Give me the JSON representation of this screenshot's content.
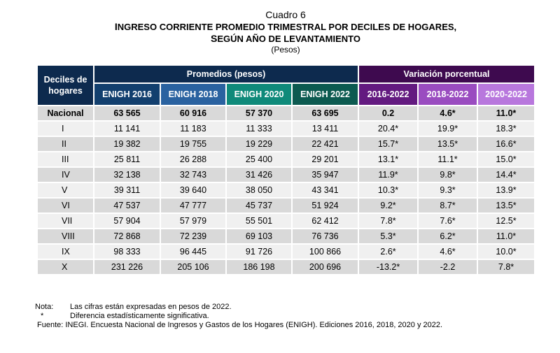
{
  "header": {
    "cuadro": "Cuadro 6",
    "title_line1": "Ingreso corriente promedio trimestral por deciles de hogares,",
    "title_line1_first": "I",
    "title_line1_rest": "NGRESO CORRIENTE PROMEDIO TRIMESTRAL POR DECILES DE HOGARES,",
    "title_line2_first": "S",
    "title_line2_rest": "EGÚN AÑO DE  LEVANTAMIENTO",
    "units": "(Pesos)"
  },
  "table": {
    "row_header": "Deciles de hogares",
    "group_promedios": "Promedios (pesos)",
    "group_variacion": "Variación porcentual",
    "columns": [
      "ENIGH 2016",
      "ENIGH 2018",
      "ENIGH 2020",
      "ENIGH 2022",
      "2016-2022",
      "2018-2022",
      "2020-2022"
    ],
    "column_colors": [
      "#123f6e",
      "#2a62a0",
      "#0f8a7a",
      "#0c5a50",
      "#631a80",
      "#9a4cc0",
      "#b877dd"
    ],
    "rows": [
      {
        "label": "Nacional",
        "values": [
          "63 565",
          "60 916",
          "57 370",
          "63 695",
          "0.2",
          "4.6*",
          "11.0*"
        ]
      },
      {
        "label": "I",
        "values": [
          "11 141",
          "11 183",
          "11 333",
          "13 411",
          "20.4*",
          "19.9*",
          "18.3*"
        ]
      },
      {
        "label": "II",
        "values": [
          "19 382",
          "19 755",
          "19 229",
          "22 421",
          "15.7*",
          "13.5*",
          "16.6*"
        ]
      },
      {
        "label": "III",
        "values": [
          "25 811",
          "26 288",
          "25 400",
          "29 201",
          "13.1*",
          "11.1*",
          "15.0*"
        ]
      },
      {
        "label": "IV",
        "values": [
          "32 138",
          "32 743",
          "31 426",
          "35 947",
          "11.9*",
          "9.8*",
          "14.4*"
        ]
      },
      {
        "label": "V",
        "values": [
          "39 311",
          "39 640",
          "38 050",
          "43 341",
          "10.3*",
          "9.3*",
          "13.9*"
        ]
      },
      {
        "label": "VI",
        "values": [
          "47 537",
          "47 777",
          "45 737",
          "51 924",
          "9.2*",
          "8.7*",
          "13.5*"
        ]
      },
      {
        "label": "VII",
        "values": [
          "57 904",
          "57 979",
          "55 501",
          "62 412",
          "7.8*",
          "7.6*",
          "12.5*"
        ]
      },
      {
        "label": "VIII",
        "values": [
          "72 868",
          "72 239",
          "69 103",
          "76 736",
          "5.3*",
          "6.2*",
          "11.0*"
        ]
      },
      {
        "label": "IX",
        "values": [
          "98 333",
          "96 445",
          "91 726",
          "100 866",
          "2.6*",
          "4.6*",
          "10.0*"
        ]
      },
      {
        "label": "X",
        "values": [
          "231 226",
          "205 106",
          "186 198",
          "200 696",
          "-13.2*",
          "-2.2",
          "7.8*"
        ]
      }
    ]
  },
  "notes": {
    "nota_label": "Nota:",
    "nota_text": "Las cifras están expresadas en pesos de 2022.",
    "asterisk_label": "*",
    "asterisk_text": "Diferencia estadísticamente significativa.",
    "fuente": "Fuente: INEGI. Encuesta Nacional de Ingresos y Gastos de los Hogares (ENIGH). Ediciones 2016, 2018, 2020 y 2022."
  }
}
